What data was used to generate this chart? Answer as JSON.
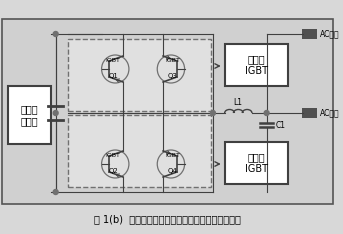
{
  "title": "图 1(b)  逆变器中全桥开关的栅极驱动器架构示意图",
  "text_solar": "太阳能\n电池板",
  "text_high": "高压侧\nIGBT",
  "text_low": "低压侧\nIGBT",
  "text_ac1": "AC输出",
  "text_ac2": "AC输出",
  "text_l1": "L1",
  "text_c1": "C1",
  "bg": "#d8d8d8",
  "inner_bg": "#c8c8c8",
  "white": "#ffffff",
  "dark": "#404040",
  "mid": "#707070",
  "light": "#aaaaaa"
}
